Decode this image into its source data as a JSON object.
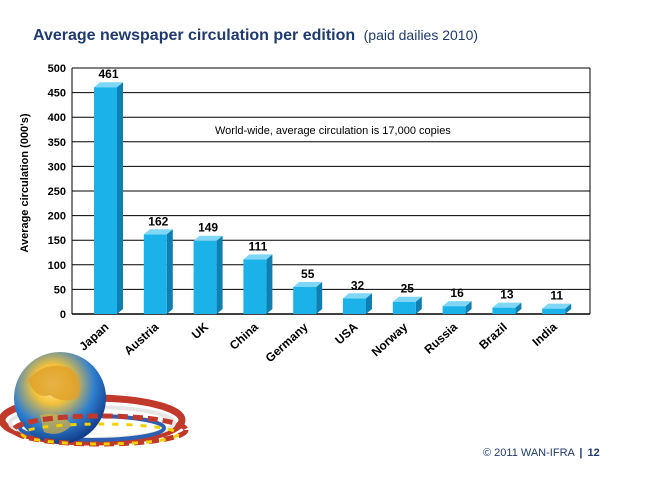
{
  "chart_data": {
    "type": "bar",
    "title": "Average newspaper circulation per edition",
    "subtitle": "(paid dailies 2010)",
    "ylabel": "Average circulation (000's)",
    "xlabel": "",
    "ylim": [
      0,
      500
    ],
    "yticks": [
      0,
      50,
      100,
      150,
      200,
      250,
      300,
      350,
      400,
      450,
      500
    ],
    "grid": true,
    "categories": [
      "Japan",
      "Austria",
      "UK",
      "China",
      "Germany",
      "USA",
      "Norway",
      "Russia",
      "Brazil",
      "India"
    ],
    "values": [
      461,
      162,
      149,
      111,
      55,
      32,
      25,
      16,
      13,
      11
    ],
    "annotation": "World-wide, average circulation is 17,000 copies"
  },
  "colors": {
    "bar_front": "#1ab2e8",
    "bar_top": "#7fd7f5",
    "bar_side": "#0e7fb0",
    "title": "#1f3a6e"
  },
  "footer": {
    "copyright": "© 2011 WAN-IFRA",
    "separator": "|",
    "page": "12"
  },
  "decoration": {
    "globe": "globe-with-flags-icon"
  }
}
